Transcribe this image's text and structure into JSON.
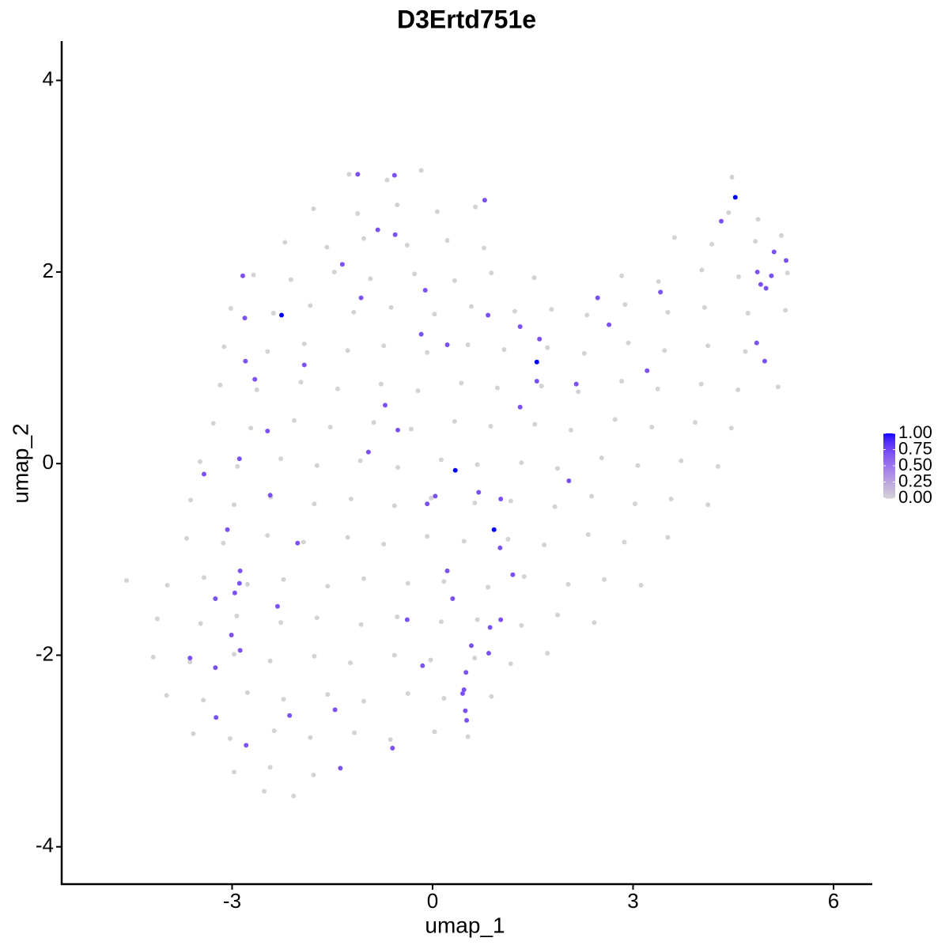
{
  "chart_data": {
    "type": "scatter",
    "title": "D3Ertd751e",
    "x_label": "umap_1",
    "y_label": "umap_2",
    "xlim": [
      -5.55,
      6.58
    ],
    "ylim": [
      -4.39,
      4.41
    ],
    "xticks": [
      -3,
      0,
      3,
      6
    ],
    "yticks": [
      -4,
      -2,
      0,
      2,
      4
    ],
    "color_scale": {
      "low": "#d3d3d3",
      "high": "#0000ff",
      "lim": [
        0,
        1
      ],
      "ticks": [
        {
          "value": 0,
          "label": "0.00"
        },
        {
          "value": 0.25,
          "label": "0.25"
        },
        {
          "value": 0.5,
          "label": "0.50"
        },
        {
          "value": 0.75,
          "label": "0.75"
        },
        {
          "value": 1,
          "label": "1.00"
        }
      ]
    },
    "x": [
      -1.25,
      -0.68,
      -0.17,
      4.48,
      -1.78,
      -1.12,
      -0.53,
      0.07,
      0.64,
      4.43,
      4.87,
      -2.21,
      -1.58,
      -1.03,
      -0.38,
      0.22,
      0.77,
      3.62,
      4.18,
      4.83,
      5.22,
      -2.68,
      -2.12,
      -1.47,
      -0.93,
      -0.27,
      0.33,
      0.88,
      1.52,
      2.83,
      3.38,
      4.03,
      4.58,
      5.31,
      -3.02,
      -2.38,
      -1.83,
      -1.18,
      -0.62,
      0.03,
      0.58,
      1.23,
      1.78,
      2.31,
      2.88,
      3.52,
      4.07,
      4.72,
      5.28,
      -3.12,
      -2.47,
      -1.92,
      -1.27,
      -0.73,
      -0.08,
      0.53,
      1.07,
      1.72,
      2.27,
      2.93,
      3.47,
      4.12,
      4.68,
      -3.18,
      -2.63,
      -1.97,
      -1.42,
      -0.77,
      -0.22,
      0.43,
      0.97,
      1.63,
      2.18,
      2.83,
      3.37,
      4.02,
      4.57,
      5.17,
      -3.28,
      -2.72,
      -2.07,
      -1.53,
      -0.88,
      -0.32,
      0.33,
      0.87,
      1.53,
      2.07,
      2.73,
      3.28,
      3.93,
      4.47,
      -3.48,
      -2.92,
      -2.27,
      -1.73,
      -1.08,
      -0.52,
      0.13,
      0.67,
      1.33,
      1.87,
      2.53,
      3.07,
      3.72,
      4.27,
      -3.62,
      -2.97,
      -2.42,
      -1.77,
      -1.22,
      -0.57,
      -0.02,
      0.63,
      1.17,
      1.83,
      2.38,
      3.03,
      3.57,
      4.12,
      -3.68,
      -3.13,
      -2.47,
      -1.93,
      -1.27,
      -0.73,
      -0.08,
      0.47,
      1.13,
      1.67,
      2.33,
      2.87,
      3.52,
      -4.58,
      -3.97,
      -3.42,
      -2.77,
      -2.23,
      -1.57,
      -1.03,
      -0.37,
      0.17,
      0.83,
      1.37,
      2.03,
      2.57,
      3.12,
      -4.12,
      -3.47,
      -2.93,
      -2.27,
      -1.73,
      -1.07,
      -0.53,
      0.13,
      0.67,
      1.33,
      1.87,
      2.42,
      -4.18,
      -3.63,
      -2.97,
      -2.43,
      -1.77,
      -1.23,
      -0.57,
      -0.03,
      0.63,
      1.17,
      1.72,
      -3.98,
      -3.43,
      -2.77,
      -2.23,
      -1.57,
      -1.03,
      -0.37,
      0.17,
      0.88,
      -3.58,
      -3.03,
      -2.37,
      -1.83,
      -1.17,
      -0.63,
      0.03,
      0.53,
      -2.97,
      -2.43,
      -1.78,
      -2.52,
      -2.08,
      -0.57,
      -1.12,
      0.78,
      -0.82,
      -0.56,
      -1.35,
      -2.84,
      -1.07,
      -0.11,
      -2.81,
      0.83,
      -0.17,
      0.22,
      1.31,
      1.6,
      -1.92,
      -2.8,
      -2.66,
      1.56,
      1.31,
      -0.71,
      -0.52,
      -2.47,
      -0.96,
      -2.89,
      -3.42,
      -2.43,
      0.04,
      -0.08,
      0.69,
      1.02,
      2.04,
      -3.07,
      -2.02,
      1.01,
      1.2,
      0.22,
      -2.88,
      -2.89,
      -2.96,
      -3.25,
      0.3,
      -2.32,
      -0.38,
      1.02,
      0.86,
      -3.01,
      -2.88,
      0.58,
      0.84,
      -3.63,
      -3.25,
      -0.15,
      0.5,
      0.47,
      0.45,
      0.49,
      0.51,
      -2.14,
      -3.24,
      -1.46,
      -2.79,
      -0.6,
      -1.38,
      2.47,
      2.64,
      3.41,
      3.21,
      2.15,
      4.32,
      4.86,
      5.07,
      4.91,
      4.99,
      5.11,
      5.29,
      4.85,
      4.97,
      -2.26,
      1.56,
      0.34,
      0.92,
      4.53
    ],
    "y": [
      3.02,
      2.96,
      3.06,
      2.99,
      2.66,
      2.61,
      2.7,
      2.63,
      2.68,
      2.62,
      2.55,
      2.31,
      2.26,
      2.35,
      2.28,
      2.33,
      2.25,
      2.36,
      2.29,
      2.32,
      2.38,
      1.97,
      1.92,
      2,
      1.93,
      1.98,
      1.91,
      1.99,
      1.94,
      1.96,
      1.9,
      2.02,
      1.95,
      1.99,
      1.62,
      1.57,
      1.65,
      1.58,
      1.63,
      1.56,
      1.64,
      1.59,
      1.61,
      1.55,
      1.66,
      1.58,
      1.63,
      1.57,
      1.6,
      1.22,
      1.17,
      1.25,
      1.18,
      1.23,
      1.16,
      1.24,
      1.19,
      1.21,
      1.15,
      1.26,
      1.18,
      1.23,
      1.17,
      0.82,
      0.77,
      0.85,
      0.78,
      0.83,
      0.76,
      0.84,
      0.79,
      0.81,
      0.75,
      0.86,
      0.78,
      0.83,
      0.77,
      0.8,
      0.42,
      0.37,
      0.45,
      0.38,
      0.43,
      0.36,
      0.44,
      0.39,
      0.41,
      0.35,
      0.46,
      0.38,
      0.43,
      0.37,
      0.02,
      -0.03,
      0.05,
      -0.02,
      0.03,
      -0.04,
      0.04,
      -0.01,
      0.01,
      -0.05,
      0.06,
      -0.02,
      0.03,
      -0.03,
      -0.38,
      -0.43,
      -0.35,
      -0.42,
      -0.37,
      -0.44,
      -0.36,
      -0.41,
      -0.39,
      -0.45,
      -0.34,
      -0.42,
      -0.37,
      -0.43,
      -0.78,
      -0.83,
      -0.75,
      -0.82,
      -0.77,
      -0.84,
      -0.76,
      -0.81,
      -0.79,
      -0.85,
      -0.74,
      -0.82,
      -0.77,
      -1.22,
      -1.27,
      -1.19,
      -1.26,
      -1.21,
      -1.28,
      -1.2,
      -1.25,
      -1.23,
      -1.29,
      -1.18,
      -1.26,
      -1.21,
      -1.27,
      -1.62,
      -1.67,
      -1.59,
      -1.66,
      -1.61,
      -1.68,
      -1.6,
      -1.65,
      -1.63,
      -1.69,
      -1.58,
      -1.66,
      -2.02,
      -2.07,
      -1.99,
      -2.06,
      -2.01,
      -2.08,
      -2,
      -2.05,
      -2.03,
      -2.09,
      -1.98,
      -2.42,
      -2.47,
      -2.39,
      -2.46,
      -2.41,
      -2.48,
      -2.4,
      -2.45,
      -2.43,
      -2.82,
      -2.87,
      -2.79,
      -2.86,
      -2.81,
      -2.88,
      -2.8,
      -2.85,
      -3.22,
      -3.17,
      -3.25,
      -3.42,
      -3.47,
      3.01,
      3.02,
      2.75,
      2.44,
      2.39,
      2.08,
      1.96,
      1.73,
      1.81,
      1.52,
      1.55,
      1.35,
      1.24,
      1.43,
      1.3,
      1.03,
      1.07,
      0.88,
      0.86,
      0.59,
      0.61,
      0.35,
      0.34,
      0.12,
      0.05,
      -0.11,
      -0.33,
      -0.34,
      -0.42,
      -0.3,
      -0.37,
      -0.18,
      -0.69,
      -0.83,
      -0.88,
      -1.16,
      -1.12,
      -1.12,
      -1.25,
      -1.35,
      -1.41,
      -1.41,
      -1.49,
      -1.63,
      -1.63,
      -1.71,
      -1.79,
      -1.95,
      -1.9,
      -1.98,
      -2.03,
      -2.13,
      -2.11,
      -2.18,
      -2.36,
      -2.4,
      -2.58,
      -2.68,
      -2.63,
      -2.65,
      -2.57,
      -2.94,
      -2.97,
      -3.18,
      1.73,
      1.45,
      1.79,
      0.97,
      0.83,
      2.53,
      2,
      1.96,
      1.87,
      1.83,
      2.21,
      2.12,
      1.26,
      1.07,
      1.55,
      1.06,
      -0.07,
      -0.69,
      2.78
    ],
    "values": [
      0,
      0,
      0,
      0,
      0,
      0,
      0,
      0,
      0,
      0,
      0,
      0,
      0,
      0,
      0,
      0,
      0,
      0,
      0,
      0,
      0,
      0,
      0,
      0,
      0,
      0,
      0,
      0,
      0,
      0,
      0,
      0,
      0,
      0,
      0,
      0,
      0,
      0,
      0,
      0,
      0,
      0,
      0,
      0,
      0,
      0,
      0,
      0,
      0,
      0,
      0,
      0,
      0,
      0,
      0,
      0,
      0,
      0,
      0,
      0,
      0,
      0,
      0,
      0,
      0,
      0,
      0,
      0,
      0,
      0,
      0,
      0,
      0,
      0,
      0,
      0,
      0,
      0,
      0,
      0,
      0,
      0,
      0,
      0,
      0,
      0,
      0,
      0,
      0,
      0,
      0,
      0,
      0,
      0,
      0,
      0,
      0,
      0,
      0,
      0,
      0,
      0,
      0,
      0,
      0,
      0,
      0,
      0,
      0,
      0,
      0,
      0,
      0,
      0,
      0,
      0,
      0,
      0,
      0,
      0,
      0,
      0,
      0,
      0,
      0,
      0,
      0,
      0,
      0,
      0,
      0,
      0,
      0,
      0,
      0,
      0,
      0,
      0,
      0,
      0,
      0,
      0,
      0,
      0,
      0,
      0,
      0,
      0,
      0,
      0,
      0,
      0,
      0,
      0,
      0,
      0,
      0,
      0,
      0,
      0,
      0,
      0,
      0,
      0,
      0,
      0,
      0,
      0,
      0,
      0,
      0,
      0,
      0,
      0,
      0,
      0,
      0,
      0,
      0,
      0,
      0,
      0,
      0,
      0,
      0,
      0,
      0,
      0,
      0,
      0,
      0,
      0,
      0.7,
      0.7,
      0.7,
      0.7,
      0.7,
      0.7,
      0.7,
      0.7,
      0.7,
      0.7,
      0.7,
      0.7,
      0.7,
      0.7,
      0.7,
      0.7,
      0.7,
      0.7,
      0.7,
      0.7,
      0.7,
      0.7,
      0.7,
      0.7,
      0.7,
      0.7,
      0.7,
      0.7,
      0.7,
      0.7,
      0.7,
      0.7,
      0.7,
      0.7,
      0.7,
      0.7,
      0.7,
      0.7,
      0.7,
      0.7,
      0.7,
      0.7,
      0.7,
      0.7,
      0.7,
      0.7,
      0.7,
      0.7,
      0.7,
      0.7,
      0.7,
      0.7,
      0.7,
      0.7,
      0.7,
      0.7,
      0.7,
      0.7,
      0.7,
      0.7,
      0.7,
      0.7,
      0.7,
      0.7,
      0.7,
      0.7,
      0.7,
      0.7,
      0.7,
      0.7,
      0.7,
      0.7,
      0.7,
      0.7,
      0.7,
      0.7,
      0.7,
      0.7,
      1,
      1,
      1,
      1,
      1
    ]
  }
}
